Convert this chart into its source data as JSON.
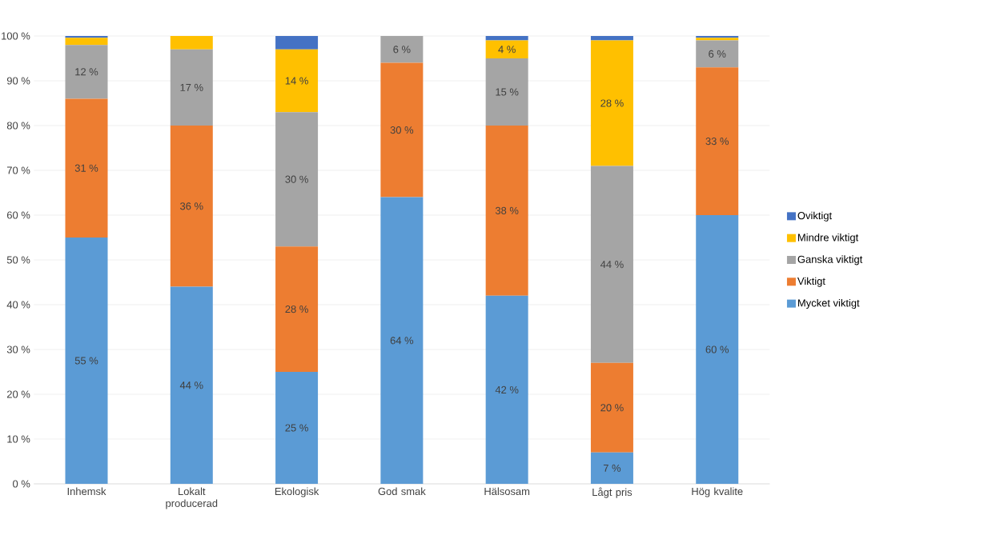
{
  "chart_data": {
    "type": "bar",
    "stacked": true,
    "categories": [
      "Inhemsk",
      "Lokalt producerad",
      "Ekologisk",
      "God smak",
      "Hälsosam",
      "Lågt pris",
      "Hög kvalite"
    ],
    "series": [
      {
        "name": "Mycket viktigt",
        "color": "#5b9bd5",
        "values": [
          55,
          44,
          25,
          64,
          42,
          7,
          60
        ],
        "value_labels": [
          "55 %",
          "44 %",
          "25 %",
          "64 %",
          "42 %",
          "7 %",
          "60 %"
        ]
      },
      {
        "name": "Viktigt",
        "color": "#ed7d31",
        "values": [
          31,
          36,
          28,
          30,
          38,
          20,
          33
        ],
        "value_labels": [
          "31 %",
          "36 %",
          "28 %",
          "30 %",
          "38 %",
          "20 %",
          "33 %"
        ]
      },
      {
        "name": "Ganska viktigt",
        "color": "#a5a5a5",
        "values": [
          12,
          17,
          30,
          6,
          15,
          44,
          6
        ],
        "value_labels": [
          "12 %",
          "17 %",
          "30 %",
          "6 %",
          "15 %",
          "44 %",
          "6 %"
        ]
      },
      {
        "name": "Mindre viktigt",
        "color": "#ffc000",
        "values": [
          1.6,
          3,
          14,
          0,
          4,
          28,
          0.6
        ],
        "value_labels": [
          null,
          null,
          "14 %",
          null,
          "4 %",
          "28 %",
          null
        ]
      },
      {
        "name": "Oviktigt",
        "color": "#4472c4",
        "values": [
          0.4,
          0,
          3,
          0,
          1,
          1,
          0.4
        ],
        "value_labels": [
          null,
          null,
          null,
          null,
          null,
          null,
          null
        ]
      }
    ],
    "ylim": [
      0,
      100
    ],
    "yticks": [
      {
        "value": 0,
        "label": "0 %"
      },
      {
        "value": 10,
        "label": "10 %"
      },
      {
        "value": 20,
        "label": "20 %"
      },
      {
        "value": 30,
        "label": "30 %"
      },
      {
        "value": 40,
        "label": "40 %"
      },
      {
        "value": 50,
        "label": "50 %"
      },
      {
        "value": 60,
        "label": "60 %"
      },
      {
        "value": 70,
        "label": "70 %"
      },
      {
        "value": 80,
        "label": "80 %"
      },
      {
        "value": 90,
        "label": "90 %"
      },
      {
        "value": 100,
        "label": "100 %"
      }
    ],
    "grid": "y",
    "legend": "right"
  }
}
